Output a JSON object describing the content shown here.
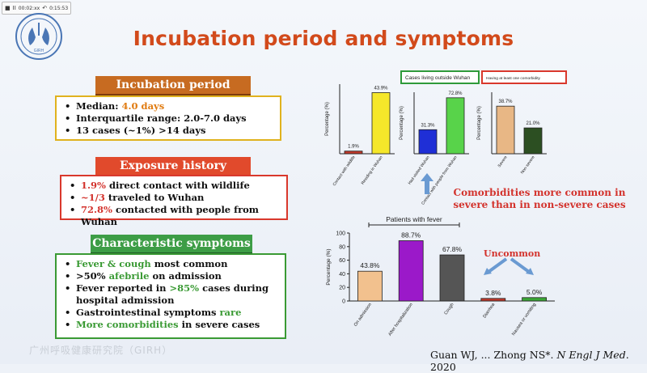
{
  "player": {
    "stop_icon": "■",
    "pause_icon": "II",
    "time": "00:02:xx",
    "replay_icon": "↶",
    "duration": "0:15:53"
  },
  "logo": {
    "label": "GIRH"
  },
  "title": "Incubation period and symptoms",
  "bullet": "•",
  "incubation": {
    "header": "Incubation period",
    "median_label": "Median:",
    "median_value": "4.0 days",
    "iqr": "Interquartile range: 2.0-7.0 days",
    "cases": "13 cases (~1%) >14 days"
  },
  "exposure": {
    "header": "Exposure history",
    "wildlife_value": "1.9%",
    "wildlife_text": "direct contact with wildlife",
    "wuhan_value": "~1/3",
    "wuhan_text": "traveled to Wuhan",
    "contact_value": "72.8%",
    "contact_text": "contacted with people from Wuhan"
  },
  "symptoms": {
    "header": "Characteristic symptoms",
    "s1_hl": "Fever & cough",
    "s1_text": "most common",
    "s2_pre": ">50%",
    "s2_hl": "afebrile",
    "s2_post": "on admission",
    "s3_pre": "Fever reported in",
    "s3_hl": ">85%",
    "s3_post": "cases during hospital admission",
    "s4_pre": "Gastrointestinal symptoms",
    "s4_hl": "rare",
    "s5_hl": "More comorbidities",
    "s5_post": "in severe cases"
  },
  "notes": {
    "comorbidities": "Comorbidities more common in severe than in non-severe cases",
    "uncommon": "Uncommon"
  },
  "citation": {
    "authors": "Guan WJ, ... Zhong NS*. ",
    "journal": "N Engl J Med",
    "year": ". 2020"
  },
  "watermark": "广州呼吸健康研究院（GIRH）",
  "chart_data": [
    {
      "type": "bar",
      "ylabel": "Percentage (%)",
      "ylim": [
        0,
        50
      ],
      "categories": [
        "Contact with wildlife",
        "Residing in Wuhan"
      ],
      "values": [
        1.9,
        43.9
      ],
      "labels": [
        "1.9%",
        "43.9%"
      ],
      "colors": [
        "#c0392b",
        "#f5e72a"
      ]
    },
    {
      "type": "bar",
      "title": "Cases living outside Wuhan",
      "title_border": "#2f9a3a",
      "ylabel": "Percentage (%)",
      "ylim": [
        0,
        80
      ],
      "categories": [
        "Had visited Wuhan",
        "Contact with people from Wuhan"
      ],
      "values": [
        31.3,
        72.8
      ],
      "labels": [
        "31.3%",
        "72.8%"
      ],
      "colors": [
        "#1f2fd6",
        "#58d34a"
      ]
    },
    {
      "type": "bar",
      "title": "Having at least one comorbidity",
      "title_border": "#d9382c",
      "ylabel": "Percentage (%)",
      "ylim": [
        0,
        50
      ],
      "categories": [
        "Severe",
        "Non-severe"
      ],
      "values": [
        38.7,
        21.0
      ],
      "labels": [
        "38.7%",
        "21.0%"
      ],
      "colors": [
        "#e8b785",
        "#2c4f22"
      ]
    },
    {
      "type": "bar",
      "title": "Patients with fever",
      "ylabel": "Percentage (%)",
      "ylim": [
        0,
        100
      ],
      "yticks": [
        0,
        20,
        40,
        60,
        80,
        100
      ],
      "categories": [
        "On admission",
        "After hospitalization",
        "Cough",
        "Diarrhea",
        "Nausea or vomiting"
      ],
      "values": [
        43.8,
        88.7,
        67.8,
        3.8,
        5.0
      ],
      "labels": [
        "43.8%",
        "88.7%",
        "67.8%",
        "3.8%",
        "5.0%"
      ],
      "colors": [
        "#f2c18e",
        "#9b19c9",
        "#555555",
        "#c0392b",
        "#3aa635"
      ]
    }
  ]
}
